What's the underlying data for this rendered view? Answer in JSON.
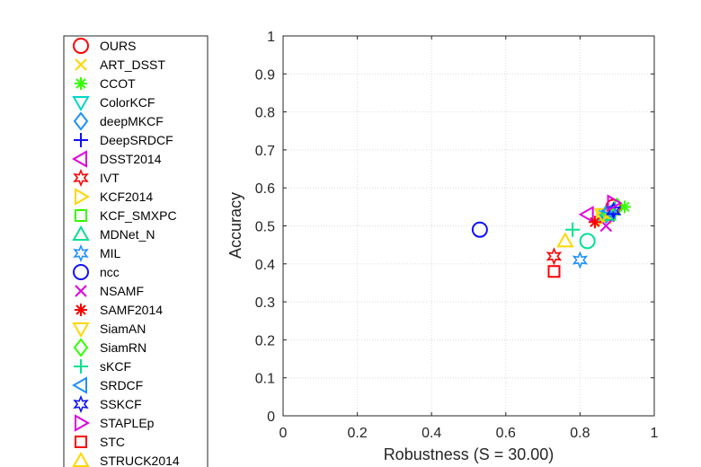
{
  "chart_data": {
    "type": "scatter",
    "xlabel": "Robustness (S = 30.00)",
    "ylabel": "Accuracy",
    "xlim": [
      0,
      1
    ],
    "ylim": [
      0,
      1
    ],
    "xticks": [
      "0",
      "0.2",
      "0.4",
      "0.6",
      "0.8",
      "1"
    ],
    "yticks": [
      "0",
      "0.1",
      "0.2",
      "0.3",
      "0.4",
      "0.5",
      "0.6",
      "0.7",
      "0.8",
      "0.9",
      "1"
    ],
    "grid": true,
    "legend_position": "outside-left",
    "series": [
      {
        "name": "OURS",
        "marker": "circle",
        "color": "#ff0000",
        "x": 0.89,
        "y": 0.55
      },
      {
        "name": "ART_DSST",
        "marker": "x",
        "color": "#ffd700",
        "x": 0.87,
        "y": 0.52
      },
      {
        "name": "CCOT",
        "marker": "asterisk",
        "color": "#33ff00",
        "x": 0.92,
        "y": 0.55
      },
      {
        "name": "ColorKCF",
        "marker": "triangle-down",
        "color": "#00d6c8",
        "x": 0.87,
        "y": 0.53
      },
      {
        "name": "deepMKCF",
        "marker": "diamond",
        "color": "#1e90ff",
        "x": 0.87,
        "y": 0.53
      },
      {
        "name": "DeepSRDCF",
        "marker": "plus",
        "color": "#1010ff",
        "x": 0.89,
        "y": 0.53
      },
      {
        "name": "DSST2014",
        "marker": "triangle-left",
        "color": "#e000e0",
        "x": 0.82,
        "y": 0.53
      },
      {
        "name": "IVT",
        "marker": "hexagram",
        "color": "#ff0000",
        "x": 0.73,
        "y": 0.42
      },
      {
        "name": "KCF2014",
        "marker": "triangle-right",
        "color": "#ffd700",
        "x": 0.86,
        "y": 0.52
      },
      {
        "name": "KCF_SMXPC",
        "marker": "square",
        "color": "#33ff00",
        "x": 0.88,
        "y": 0.53
      },
      {
        "name": "MDNet_N",
        "marker": "triangle-up",
        "color": "#00e090",
        "x": 0.87,
        "y": 0.53
      },
      {
        "name": "MIL",
        "marker": "hexagram",
        "color": "#1e90ff",
        "x": 0.8,
        "y": 0.41
      },
      {
        "name": "ncc",
        "marker": "circle",
        "color": "#1010ff",
        "x": 0.53,
        "y": 0.49
      },
      {
        "name": "NSAMF",
        "marker": "x",
        "color": "#e000e0",
        "x": 0.87,
        "y": 0.5
      },
      {
        "name": "SAMF2014",
        "marker": "asterisk",
        "color": "#ff0000",
        "x": 0.84,
        "y": 0.51
      },
      {
        "name": "SiamAN",
        "marker": "triangle-down",
        "color": "#ffd700",
        "x": 0.86,
        "y": 0.53
      },
      {
        "name": "SiamRN",
        "marker": "diamond",
        "color": "#33ff00",
        "x": 0.9,
        "y": 0.55
      },
      {
        "name": "sKCF",
        "marker": "plus",
        "color": "#00e090",
        "x": 0.78,
        "y": 0.49
      },
      {
        "name": "SRDCF",
        "marker": "triangle-left",
        "color": "#1e90ff",
        "x": 0.88,
        "y": 0.54
      },
      {
        "name": "SSKCF",
        "marker": "hexagram",
        "color": "#1010ff",
        "x": 0.89,
        "y": 0.54
      },
      {
        "name": "STAPLEp",
        "marker": "triangle-right",
        "color": "#e000e0",
        "x": 0.89,
        "y": 0.56
      },
      {
        "name": "STC",
        "marker": "square",
        "color": "#ff0000",
        "x": 0.73,
        "y": 0.38
      },
      {
        "name": "STRUCK2014",
        "marker": "triangle-up",
        "color": "#ffd700",
        "x": 0.76,
        "y": 0.46
      },
      {
        "name": "",
        "marker": "circle",
        "color": "#00e090",
        "x": 0.82,
        "y": 0.46
      }
    ]
  }
}
